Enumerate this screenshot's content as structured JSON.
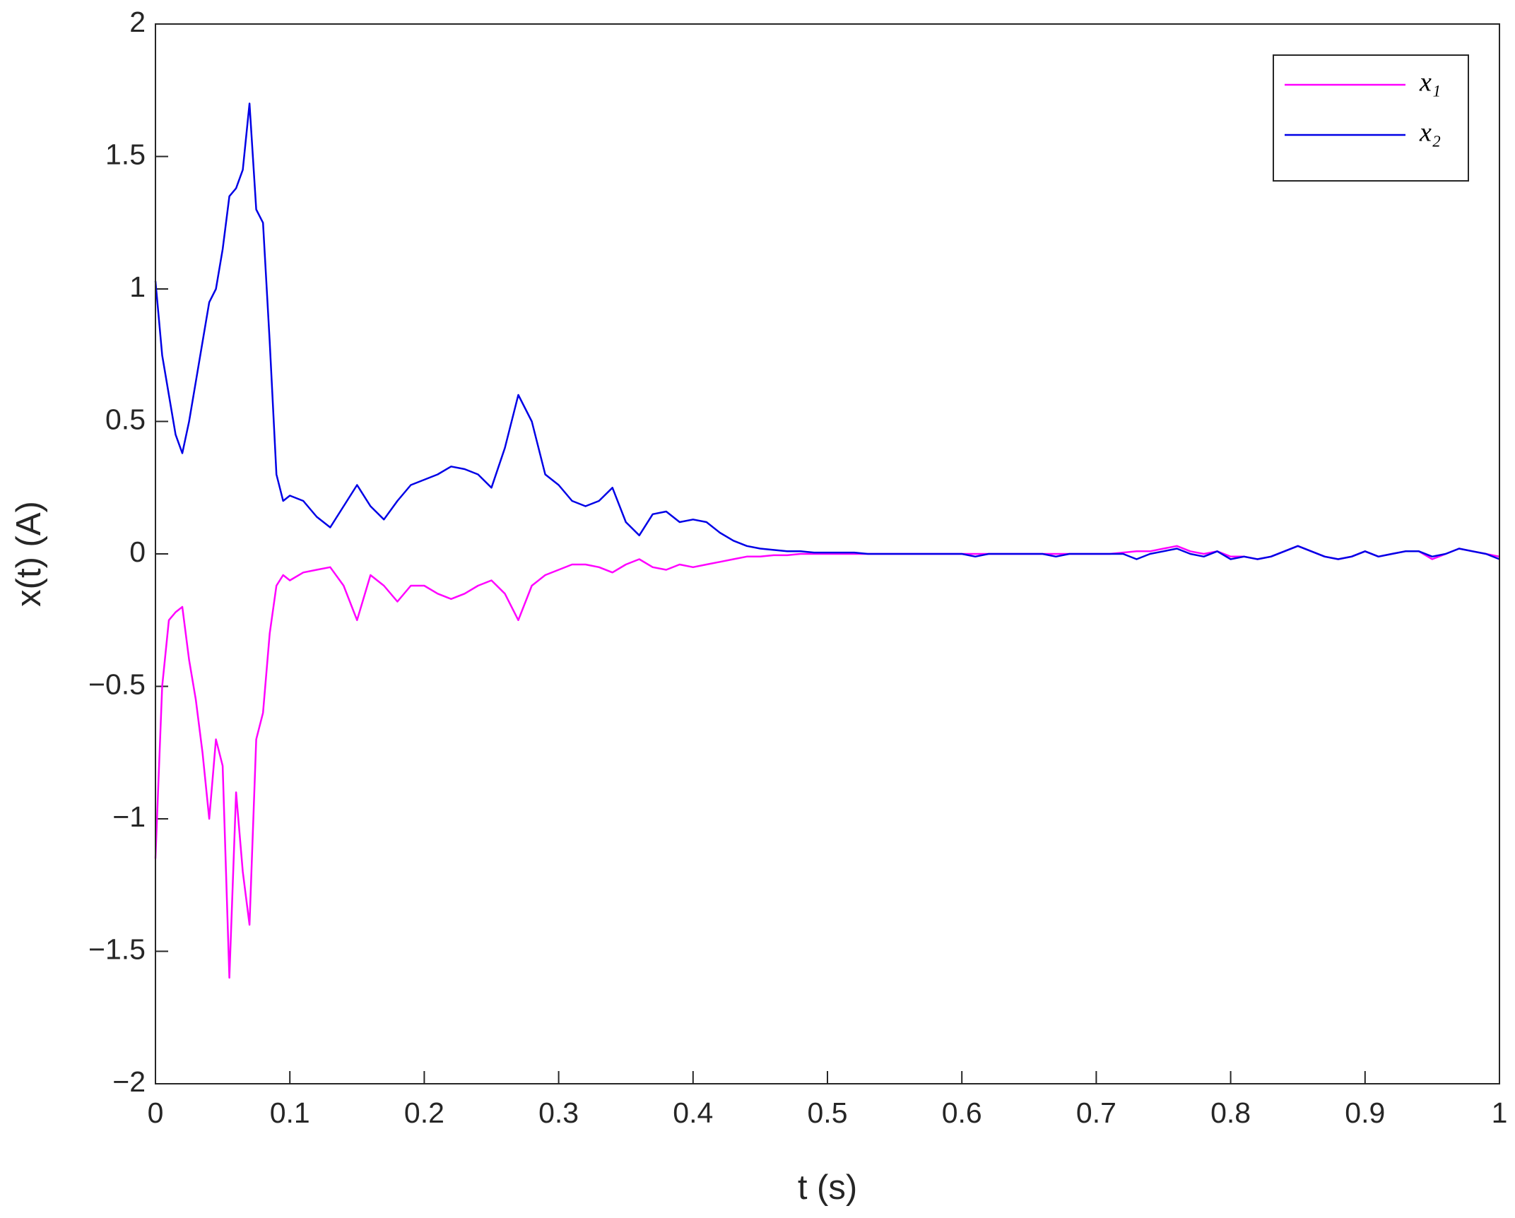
{
  "chart_data": {
    "type": "line",
    "xlabel": "t (s)",
    "ylabel": "x(t) (A)",
    "x": [
      0,
      0.005,
      0.01,
      0.015,
      0.02,
      0.025,
      0.03,
      0.035,
      0.04,
      0.045,
      0.05,
      0.055,
      0.06,
      0.065,
      0.07,
      0.075,
      0.08,
      0.085,
      0.09,
      0.095,
      0.1,
      0.11,
      0.12,
      0.13,
      0.14,
      0.15,
      0.16,
      0.17,
      0.18,
      0.19,
      0.2,
      0.21,
      0.22,
      0.23,
      0.24,
      0.25,
      0.26,
      0.27,
      0.28,
      0.29,
      0.3,
      0.31,
      0.32,
      0.33,
      0.34,
      0.35,
      0.36,
      0.37,
      0.38,
      0.39,
      0.4,
      0.41,
      0.42,
      0.43,
      0.44,
      0.45,
      0.46,
      0.47,
      0.48,
      0.49,
      0.5,
      0.51,
      0.52,
      0.53,
      0.54,
      0.55,
      0.56,
      0.57,
      0.58,
      0.59,
      0.6,
      0.61,
      0.62,
      0.63,
      0.64,
      0.65,
      0.66,
      0.67,
      0.68,
      0.69,
      0.7,
      0.71,
      0.72,
      0.73,
      0.74,
      0.75,
      0.76,
      0.77,
      0.78,
      0.79,
      0.8,
      0.81,
      0.82,
      0.83,
      0.84,
      0.85,
      0.86,
      0.87,
      0.88,
      0.89,
      0.9,
      0.91,
      0.92,
      0.93,
      0.94,
      0.95,
      0.96,
      0.97,
      0.98,
      0.99,
      1
    ],
    "series": [
      {
        "name": "x₁",
        "color": "#ff00ff",
        "values": [
          -1.15,
          -0.5,
          -0.25,
          -0.22,
          -0.2,
          -0.4,
          -0.55,
          -0.75,
          -1.0,
          -0.7,
          -0.8,
          -1.6,
          -0.9,
          -1.2,
          -1.4,
          -0.7,
          -0.6,
          -0.3,
          -0.12,
          -0.08,
          -0.1,
          -0.07,
          -0.06,
          -0.05,
          -0.12,
          -0.25,
          -0.08,
          -0.12,
          -0.18,
          -0.12,
          -0.12,
          -0.15,
          -0.17,
          -0.15,
          -0.12,
          -0.1,
          -0.15,
          -0.25,
          -0.12,
          -0.08,
          -0.06,
          -0.04,
          -0.04,
          -0.05,
          -0.07,
          -0.04,
          -0.02,
          -0.05,
          -0.06,
          -0.04,
          -0.05,
          -0.04,
          -0.03,
          -0.02,
          -0.01,
          -0.01,
          -0.005,
          -0.005,
          0,
          0,
          0,
          0,
          0,
          0,
          0,
          0,
          0,
          0,
          0,
          0,
          0,
          0,
          0,
          0,
          0,
          0,
          0,
          0,
          0,
          0,
          0,
          0,
          0.005,
          0.01,
          0.01,
          0.02,
          0.03,
          0.01,
          0,
          0.01,
          -0.01,
          -0.01,
          -0.02,
          -0.01,
          0.01,
          0.03,
          0.01,
          -0.01,
          -0.02,
          -0.01,
          0.01,
          -0.01,
          0,
          0.01,
          0.01,
          -0.02,
          0,
          0.02,
          0.01,
          0,
          -0.01
        ]
      },
      {
        "name": "x₂",
        "color": "#0000e6",
        "values": [
          1.03,
          0.75,
          0.6,
          0.45,
          0.38,
          0.5,
          0.65,
          0.8,
          0.95,
          1.0,
          1.15,
          1.35,
          1.38,
          1.45,
          1.7,
          1.3,
          1.25,
          0.8,
          0.3,
          0.2,
          0.22,
          0.2,
          0.14,
          0.1,
          0.18,
          0.26,
          0.18,
          0.13,
          0.2,
          0.26,
          0.28,
          0.3,
          0.33,
          0.32,
          0.3,
          0.25,
          0.4,
          0.6,
          0.5,
          0.3,
          0.26,
          0.2,
          0.18,
          0.2,
          0.25,
          0.12,
          0.07,
          0.15,
          0.16,
          0.12,
          0.13,
          0.12,
          0.08,
          0.05,
          0.03,
          0.02,
          0.015,
          0.01,
          0.01,
          0.005,
          0.005,
          0.005,
          0.005,
          0,
          0,
          0,
          0,
          0,
          0,
          0,
          0,
          -0.01,
          0,
          0,
          0,
          0,
          0,
          -0.01,
          0,
          0,
          0,
          0,
          0,
          -0.02,
          0,
          0.01,
          0.02,
          0,
          -0.01,
          0.01,
          -0.02,
          -0.01,
          -0.02,
          -0.01,
          0.01,
          0.03,
          0.01,
          -0.01,
          -0.02,
          -0.01,
          0.01,
          -0.01,
          0,
          0.01,
          0.01,
          -0.01,
          0,
          0.02,
          0.01,
          0,
          -0.02
        ]
      }
    ],
    "xlim": [
      0,
      1
    ],
    "xticks": [
      0,
      0.1,
      0.2,
      0.3,
      0.4,
      0.5,
      0.6,
      0.7,
      0.8,
      0.9,
      1
    ],
    "ylim": [
      -2,
      2
    ],
    "yticks": [
      {
        "value": -2,
        "label": "−2"
      },
      {
        "value": -1.5,
        "label": "−1.5"
      },
      {
        "value": -1,
        "label": "−1"
      },
      {
        "value": -0.5,
        "label": "−0.5"
      },
      0,
      0.5,
      1,
      1.5,
      2
    ],
    "grid": false,
    "legend": "northeast"
  }
}
